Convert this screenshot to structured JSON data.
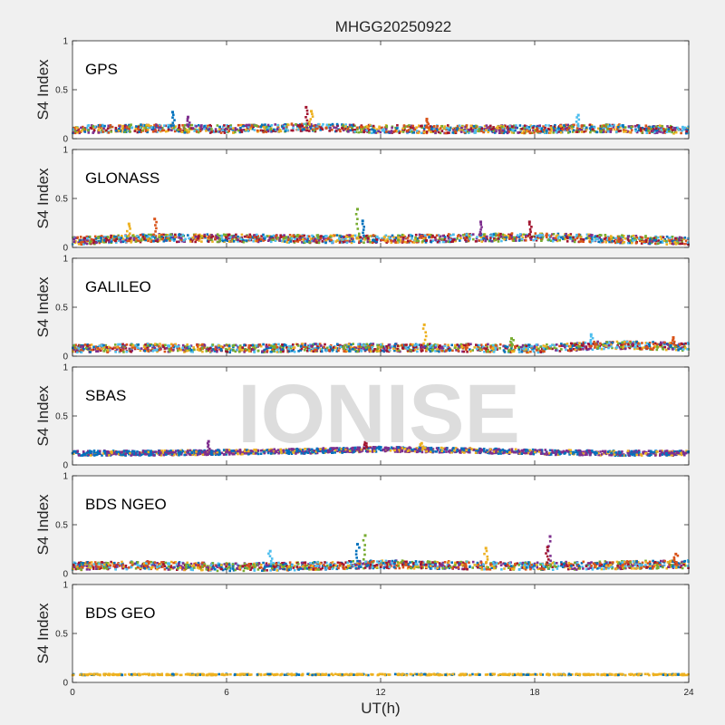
{
  "figure": {
    "title": "MHGG20250922",
    "xlabel": "UT(h)",
    "watermark": "IONISE"
  },
  "chart_data": {
    "type": "scatter",
    "title": "MHGG20250922",
    "xlabel": "UT(h)",
    "ylabel": "S4 Index",
    "xlim": [
      0,
      24
    ],
    "ylim": [
      0,
      1
    ],
    "xticks": [
      0,
      6,
      12,
      18,
      24
    ],
    "yticks": [
      0,
      0.5,
      1
    ],
    "grid": false,
    "series_colors": [
      "#0072BD",
      "#D95319",
      "#EDB120",
      "#7E2F8E",
      "#77AC30",
      "#4DBEEE",
      "#A2142F"
    ],
    "panels": [
      {
        "label": "GPS",
        "ylabel": "S4 Index",
        "approx_profile": [
          {
            "x": 0,
            "y": 0.1
          },
          {
            "x": 3,
            "y": 0.11
          },
          {
            "x": 6,
            "y": 0.1
          },
          {
            "x": 9,
            "y": 0.12
          },
          {
            "x": 12,
            "y": 0.1
          },
          {
            "x": 15,
            "y": 0.1
          },
          {
            "x": 18,
            "y": 0.1
          },
          {
            "x": 21,
            "y": 0.11
          },
          {
            "x": 24,
            "y": 0.09
          }
        ],
        "peaks": [
          {
            "x": 3.9,
            "y": 0.27
          },
          {
            "x": 4.5,
            "y": 0.22
          },
          {
            "x": 9.1,
            "y": 0.32
          },
          {
            "x": 9.3,
            "y": 0.28
          },
          {
            "x": 19.7,
            "y": 0.24
          },
          {
            "x": 13.8,
            "y": 0.2
          }
        ]
      },
      {
        "label": "GLONASS",
        "ylabel": "S4 Index",
        "approx_profile": [
          {
            "x": 0,
            "y": 0.07
          },
          {
            "x": 3,
            "y": 0.1
          },
          {
            "x": 6,
            "y": 0.1
          },
          {
            "x": 9,
            "y": 0.09
          },
          {
            "x": 12,
            "y": 0.09
          },
          {
            "x": 15,
            "y": 0.1
          },
          {
            "x": 18,
            "y": 0.11
          },
          {
            "x": 21,
            "y": 0.09
          },
          {
            "x": 24,
            "y": 0.07
          }
        ],
        "peaks": [
          {
            "x": 3.2,
            "y": 0.29
          },
          {
            "x": 11.1,
            "y": 0.39
          },
          {
            "x": 11.3,
            "y": 0.27
          },
          {
            "x": 15.9,
            "y": 0.26
          },
          {
            "x": 17.8,
            "y": 0.26
          },
          {
            "x": 2.2,
            "y": 0.24
          }
        ]
      },
      {
        "label": "GALILEO",
        "ylabel": "S4 Index",
        "approx_profile": [
          {
            "x": 0,
            "y": 0.08
          },
          {
            "x": 3,
            "y": 0.09
          },
          {
            "x": 6,
            "y": 0.08
          },
          {
            "x": 9,
            "y": 0.09
          },
          {
            "x": 12,
            "y": 0.09
          },
          {
            "x": 15,
            "y": 0.09
          },
          {
            "x": 18,
            "y": 0.08
          },
          {
            "x": 21,
            "y": 0.12
          },
          {
            "x": 24,
            "y": 0.1
          }
        ],
        "peaks": [
          {
            "x": 13.7,
            "y": 0.32
          },
          {
            "x": 20.2,
            "y": 0.22
          },
          {
            "x": 23.4,
            "y": 0.19
          },
          {
            "x": 17.1,
            "y": 0.18
          }
        ]
      },
      {
        "label": "SBAS",
        "ylabel": "S4 Index",
        "approx_profile": [
          {
            "x": 0,
            "y": 0.12
          },
          {
            "x": 3,
            "y": 0.12
          },
          {
            "x": 6,
            "y": 0.13
          },
          {
            "x": 9,
            "y": 0.14
          },
          {
            "x": 12,
            "y": 0.16
          },
          {
            "x": 15,
            "y": 0.15
          },
          {
            "x": 18,
            "y": 0.13
          },
          {
            "x": 21,
            "y": 0.12
          },
          {
            "x": 24,
            "y": 0.12
          }
        ],
        "peaks": [
          {
            "x": 5.3,
            "y": 0.24
          },
          {
            "x": 11.4,
            "y": 0.23
          },
          {
            "x": 13.6,
            "y": 0.22
          }
        ]
      },
      {
        "label": "BDS NGEO",
        "ylabel": "S4 Index",
        "approx_profile": [
          {
            "x": 0,
            "y": 0.08
          },
          {
            "x": 3,
            "y": 0.09
          },
          {
            "x": 6,
            "y": 0.07
          },
          {
            "x": 9,
            "y": 0.08
          },
          {
            "x": 12,
            "y": 0.1
          },
          {
            "x": 15,
            "y": 0.09
          },
          {
            "x": 18,
            "y": 0.08
          },
          {
            "x": 21,
            "y": 0.09
          },
          {
            "x": 24,
            "y": 0.1
          }
        ],
        "peaks": [
          {
            "x": 11.4,
            "y": 0.39
          },
          {
            "x": 11.1,
            "y": 0.3
          },
          {
            "x": 18.6,
            "y": 0.38
          },
          {
            "x": 18.5,
            "y": 0.27
          },
          {
            "x": 16.1,
            "y": 0.26
          },
          {
            "x": 7.7,
            "y": 0.23
          },
          {
            "x": 23.5,
            "y": 0.2
          }
        ]
      },
      {
        "label": "BDS GEO",
        "ylabel": "S4 Index",
        "approx_profile": [
          {
            "x": 0,
            "y": 0.08
          },
          {
            "x": 6,
            "y": 0.08
          },
          {
            "x": 12,
            "y": 0.08
          },
          {
            "x": 18,
            "y": 0.08
          },
          {
            "x": 24,
            "y": 0.08
          }
        ],
        "peaks": []
      }
    ]
  }
}
